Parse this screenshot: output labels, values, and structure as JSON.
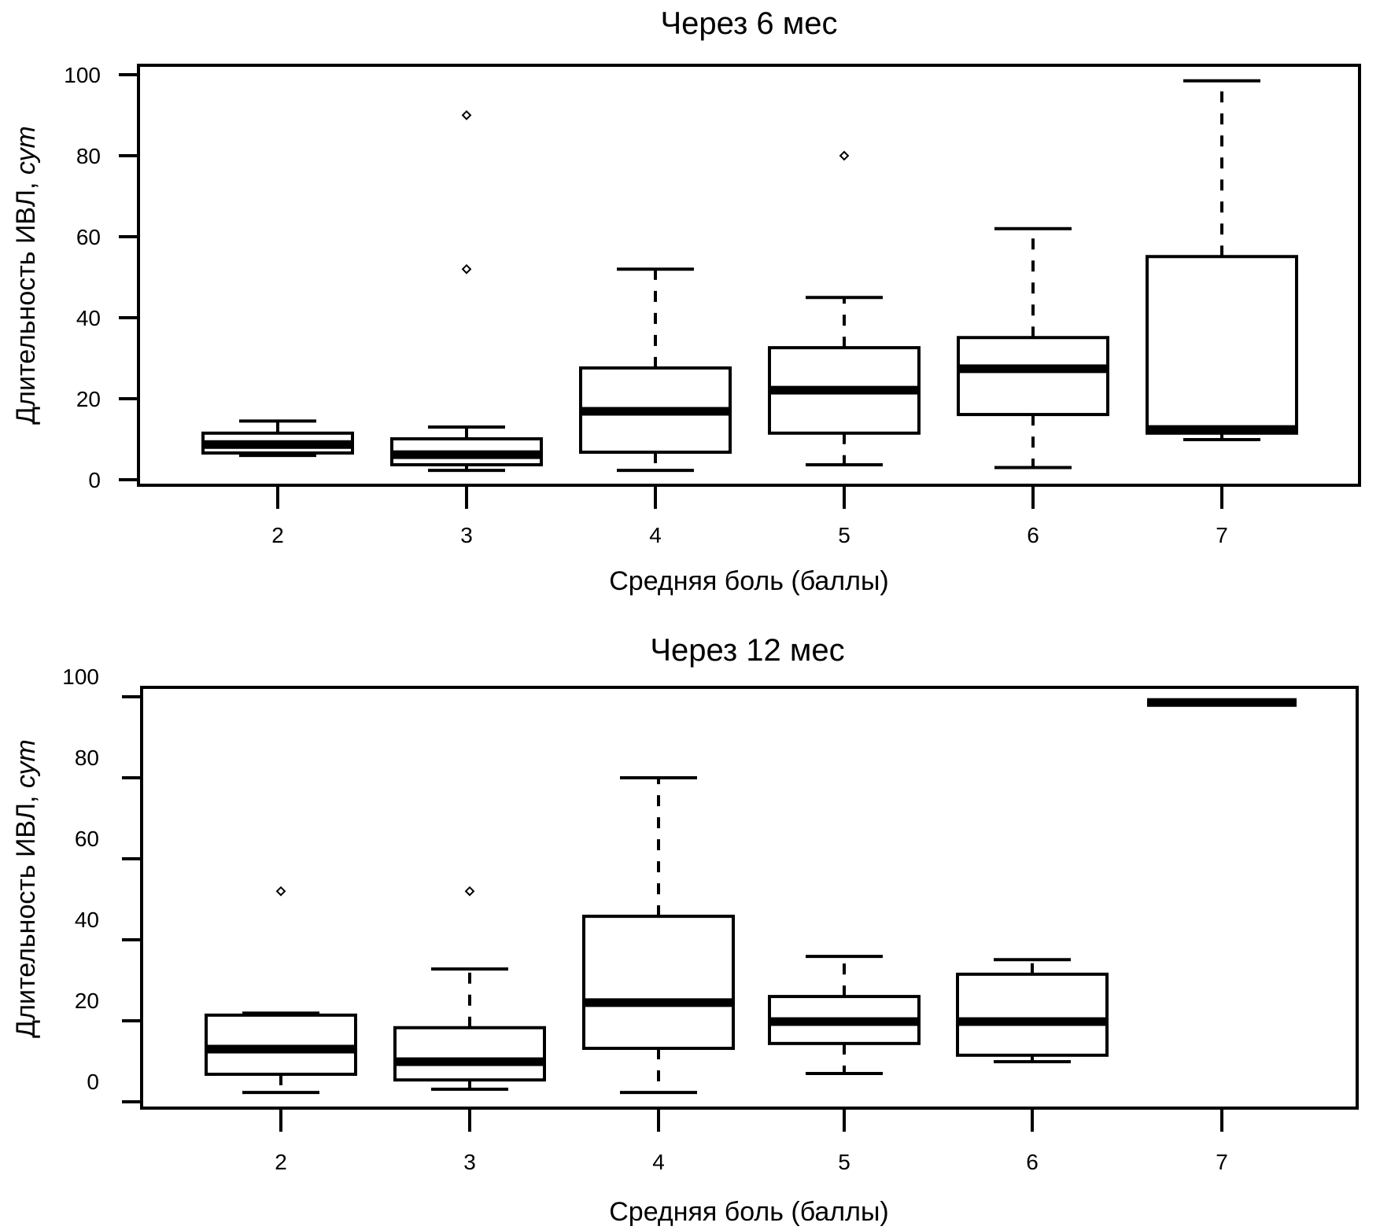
{
  "chart_data": [
    {
      "type": "boxplot",
      "title": "Через 6 мес",
      "xlabel": "Средняя боль (баллы)",
      "ylabel_main": "Длительность ИВЛ, ",
      "ylabel_unit": "сут",
      "ylim": [
        0,
        100
      ],
      "yticks": [
        "0",
        "20",
        "40",
        "60",
        "80",
        "100"
      ],
      "ytick_values": [
        0,
        20,
        40,
        60,
        80,
        100
      ],
      "categories": [
        "2",
        "3",
        "4",
        "5",
        "6",
        "7"
      ],
      "grid": false,
      "boxes": [
        {
          "category": "2",
          "whisker_low": 6,
          "q1": 6.6,
          "median": 8.7,
          "q3": 11.5,
          "whisker_high": 14.5,
          "outliers": []
        },
        {
          "category": "3",
          "whisker_low": 2.3,
          "q1": 3.7,
          "median": 6.2,
          "q3": 10.1,
          "whisker_high": 13,
          "outliers": [
            52,
            90
          ]
        },
        {
          "category": "4",
          "whisker_low": 2.3,
          "q1": 6.8,
          "median": 16.9,
          "q3": 27.6,
          "whisker_high": 52,
          "outliers": []
        },
        {
          "category": "5",
          "whisker_low": 3.7,
          "q1": 11.5,
          "median": 22.1,
          "q3": 32.6,
          "whisker_high": 45,
          "outliers": [
            80
          ]
        },
        {
          "category": "6",
          "whisker_low": 3,
          "q1": 16.1,
          "median": 27.4,
          "q3": 35.1,
          "whisker_high": 62,
          "outliers": []
        },
        {
          "category": "7",
          "whisker_low": 9.9,
          "q1": 11.5,
          "median": 12.4,
          "q3": 55.1,
          "whisker_high": 98.5,
          "outliers": []
        }
      ]
    },
    {
      "type": "boxplot",
      "title": "Через 12 мес",
      "xlabel": "Средняя боль (баллы)",
      "ylabel_main": "Длительность ИВЛ, ",
      "ylabel_unit": "сут",
      "ylim": [
        0,
        100
      ],
      "yticks": [
        "0",
        "20",
        "40",
        "60",
        "80",
        "100"
      ],
      "ytick_values": [
        0,
        20,
        40,
        60,
        80,
        100
      ],
      "categories": [
        "2",
        "3",
        "4",
        "5",
        "6",
        "7"
      ],
      "grid": false,
      "boxes": [
        {
          "category": "2",
          "whisker_low": 2.3,
          "q1": 6.8,
          "median": 13,
          "q3": 21.4,
          "whisker_high": 21.9,
          "outliers": [
            52
          ]
        },
        {
          "category": "3",
          "whisker_low": 3.1,
          "q1": 5.4,
          "median": 9.9,
          "q3": 18.3,
          "whisker_high": 32.8,
          "outliers": [
            52
          ]
        },
        {
          "category": "4",
          "whisker_low": 2.3,
          "q1": 13.2,
          "median": 24.5,
          "q3": 45.8,
          "whisker_high": 80,
          "outliers": []
        },
        {
          "category": "5",
          "whisker_low": 7,
          "q1": 14.4,
          "median": 19.8,
          "q3": 26,
          "whisker_high": 35.9,
          "outliers": []
        },
        {
          "category": "6",
          "whisker_low": 9.9,
          "q1": 11.5,
          "median": 19.8,
          "q3": 31.5,
          "whisker_high": 35.1,
          "outliers": []
        },
        {
          "category": "7",
          "whisker_low": 98.6,
          "q1": 98.6,
          "median": 98.6,
          "q3": 98.6,
          "whisker_high": 98.6,
          "outliers": []
        }
      ]
    }
  ]
}
